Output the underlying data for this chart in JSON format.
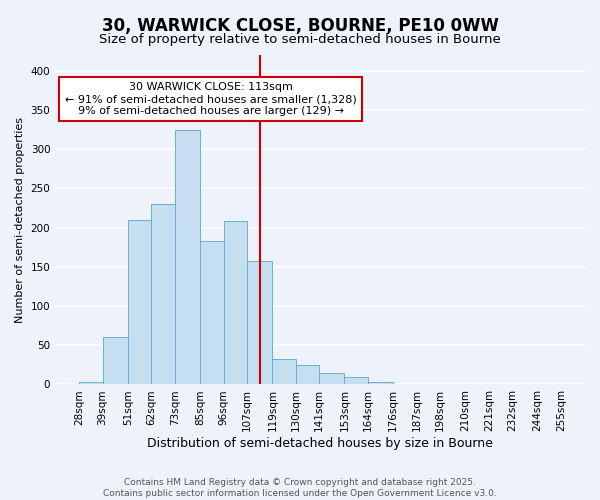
{
  "title": "30, WARWICK CLOSE, BOURNE, PE10 0WW",
  "subtitle": "Size of property relative to semi-detached houses in Bourne",
  "xlabel": "Distribution of semi-detached houses by size in Bourne",
  "ylabel": "Number of semi-detached properties",
  "bin_labels": [
    "28sqm",
    "39sqm",
    "51sqm",
    "62sqm",
    "73sqm",
    "85sqm",
    "96sqm",
    "107sqm",
    "119sqm",
    "130sqm",
    "141sqm",
    "153sqm",
    "164sqm",
    "176sqm",
    "187sqm",
    "198sqm",
    "210sqm",
    "221sqm",
    "232sqm",
    "244sqm",
    "255sqm"
  ],
  "bin_edges": [
    28,
    39,
    51,
    62,
    73,
    85,
    96,
    107,
    119,
    130,
    141,
    153,
    164,
    176,
    187,
    198,
    210,
    221,
    232,
    244,
    255
  ],
  "bar_heights": [
    3,
    60,
    210,
    230,
    325,
    183,
    208,
    157,
    32,
    25,
    14,
    9,
    3,
    1,
    0,
    0,
    0,
    0,
    0,
    0
  ],
  "bar_color": "#c5dff0",
  "bar_edge_color": "#6baed6",
  "vline_x": 113,
  "vline_color": "#cc0000",
  "annotation_title": "30 WARWICK CLOSE: 113sqm",
  "annotation_line1": "← 91% of semi-detached houses are smaller (1,328)",
  "annotation_line2": "9% of semi-detached houses are larger (129) →",
  "annotation_box_facecolor": "#ffffff",
  "annotation_box_edgecolor": "#cc0000",
  "ylim": [
    0,
    420
  ],
  "yticks": [
    0,
    50,
    100,
    150,
    200,
    250,
    300,
    350,
    400
  ],
  "footer1": "Contains HM Land Registry data © Crown copyright and database right 2025.",
  "footer2": "Contains public sector information licensed under the Open Government Licence v3.0.",
  "background_color": "#eef2fb",
  "grid_color": "#ffffff",
  "title_fontsize": 12,
  "subtitle_fontsize": 9.5,
  "xlabel_fontsize": 9,
  "ylabel_fontsize": 8,
  "tick_fontsize": 7.5,
  "footer_fontsize": 6.5,
  "annotation_fontsize": 8
}
